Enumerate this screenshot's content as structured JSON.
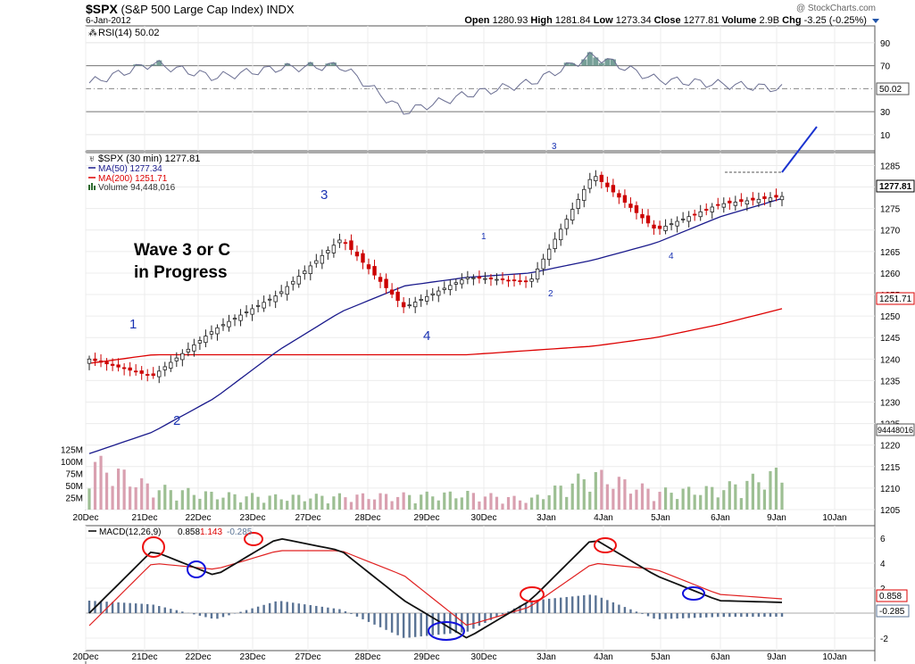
{
  "header": {
    "symbol": "$SPX",
    "name": "(S&P 500 Large Cap Index)",
    "exchange": "INDX",
    "date": "6-Jan-2012",
    "credit": "@ StockCharts.com",
    "open_label": "Open",
    "open": "1280.93",
    "high_label": "High",
    "high": "1281.84",
    "low_label": "Low",
    "low": "1273.34",
    "close_label": "Close",
    "close": "1277.81",
    "volume_label": "Volume",
    "volume": "2.9B",
    "chg_label": "Chg",
    "chg": "-3.25 (-0.25%)"
  },
  "rsi_panel": {
    "legend": "RSI(14) 50.02",
    "value_tag": "50.02",
    "ticks": [
      "90",
      "70",
      "50",
      "30",
      "10"
    ]
  },
  "price_panel": {
    "legend_main": "$SPX (30 min) 1277.81",
    "legend_ma50": "MA(50) 1277.34",
    "legend_ma200": "MA(200) 1251.71",
    "legend_volume": "Volume 94,448,016",
    "price_tag": "1277.81",
    "ma200_tag": "1251.71",
    "volume_tag": "94448016",
    "ticks": [
      "1285",
      "1280",
      "1275",
      "1270",
      "1265",
      "1260",
      "1255",
      "1250",
      "1245",
      "1240",
      "1235",
      "1230",
      "1225",
      "1220",
      "1215",
      "1210",
      "1205"
    ],
    "volume_ticks": [
      "125M",
      "100M",
      "75M",
      "50M",
      "25M"
    ],
    "annotation_text_line1": "Wave 3 or C",
    "annotation_text_line2": "in Progress",
    "wave_labels": [
      "1",
      "2",
      "3",
      "4",
      "1",
      "2",
      "3",
      "4"
    ]
  },
  "macd_panel": {
    "legend_name": "MACD(12,26,9)",
    "legend_macd": "0.858",
    "legend_signal": "1.143",
    "legend_hist": "-0.285",
    "ticks": [
      "6",
      "4",
      "2",
      "-2"
    ],
    "macd_tag": "0.858",
    "hist_tag": "-0.285"
  },
  "x_axis": {
    "dates": [
      "20Dec",
      "21Dec",
      "22Dec",
      "23Dec",
      "27Dec",
      "28Dec",
      "29Dec",
      "30Dec",
      "3Jan",
      "4Jan",
      "5Jan",
      "6Jan",
      "9Jan",
      "10Jan"
    ]
  },
  "colors": {
    "up": "#222222",
    "down": "#cc0000",
    "ma50": "#1a1a8c",
    "ma200": "#dd0000",
    "volume_up": "#9dbf93",
    "volume_down": "#d9a0b0",
    "rsi_fill": "#5f8f86",
    "macd_hist": "#5a7394",
    "wave_label": "#1a33b3",
    "circle_red": "#ee1111",
    "circle_blue": "#1111dd"
  },
  "chart_data": [
    {
      "type": "line",
      "title": "RSI(14)",
      "ylim": [
        0,
        100
      ],
      "reference_lines": [
        70,
        50,
        30
      ],
      "last_value": 50.02,
      "x": [
        "20Dec",
        "21Dec",
        "22Dec",
        "23Dec",
        "27Dec",
        "28Dec",
        "29Dec",
        "30Dec",
        "3Jan",
        "4Jan",
        "5Jan",
        "6Jan"
      ],
      "values": [
        55,
        72,
        60,
        68,
        70,
        30,
        45,
        55,
        79,
        58,
        54,
        50
      ]
    },
    {
      "type": "candlestick",
      "title": "$SPX (30 min)",
      "ylim": [
        1205,
        1288
      ],
      "x": [
        "20Dec",
        "21Dec",
        "22Dec",
        "23Dec",
        "27Dec",
        "28Dec",
        "29Dec",
        "30Dec",
        "3Jan",
        "4Jan",
        "5Jan",
        "6Jan"
      ],
      "series": [
        {
          "name": "$SPX (30 min)",
          "values": [
            1240,
            1236,
            1247,
            1255,
            1268,
            1252,
            1259,
            1258,
            1283,
            1270,
            1276,
            1277.81
          ]
        },
        {
          "name": "MA(50)",
          "values": [
            1218,
            1223,
            1231,
            1242,
            1251,
            1257,
            1259,
            1260,
            1263,
            1267,
            1273,
            1277.34
          ]
        },
        {
          "name": "MA(200)",
          "values": [
            1239,
            1241,
            1241,
            1241,
            1241,
            1241,
            1241,
            1242,
            1243,
            1245,
            1248,
            1251.71
          ]
        },
        {
          "name": "Volume",
          "values": [
            125000000,
            55000000,
            38000000,
            32000000,
            34000000,
            36000000,
            40000000,
            25000000,
            90000000,
            45000000,
            52000000,
            94448016
          ]
        }
      ]
    },
    {
      "type": "line",
      "title": "MACD(12,26,9)",
      "ylim": [
        -3,
        7
      ],
      "x": [
        "20Dec",
        "21Dec",
        "22Dec",
        "23Dec",
        "27Dec",
        "28Dec",
        "29Dec",
        "30Dec",
        "3Jan",
        "4Jan",
        "5Jan",
        "6Jan"
      ],
      "series": [
        {
          "name": "MACD",
          "values": [
            0,
            5,
            3,
            6,
            5,
            1,
            -2,
            1,
            6,
            3,
            1,
            0.858
          ]
        },
        {
          "name": "Signal",
          "values": [
            -1,
            4,
            3.5,
            5,
            5,
            3,
            -1,
            0.5,
            4,
            3.5,
            1.5,
            1.143
          ]
        },
        {
          "name": "Histogram",
          "values": [
            1,
            0.7,
            -0.5,
            1,
            0.3,
            -2,
            -1.5,
            1,
            1.5,
            -0.5,
            -0.3,
            -0.285
          ]
        }
      ]
    }
  ]
}
